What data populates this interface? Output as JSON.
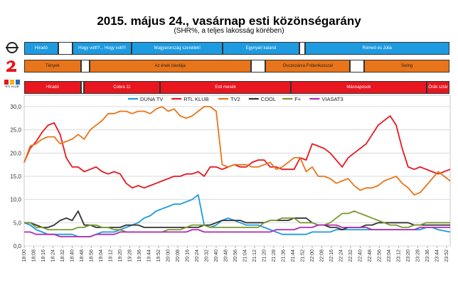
{
  "title": "2015. május 24., vasárnap esti közönségarány",
  "subtitle": "(SHR%, a teljes lakosság körében)",
  "logos": [
    {
      "channel": "DUNA TV",
      "icon": "duna-logo-icon"
    },
    {
      "channel": "TV2",
      "icon": "tv2-logo-icon"
    },
    {
      "channel": "RTL KLUB",
      "icon": "rtl-klub-logo-icon",
      "text": "RTL KLUB"
    }
  ],
  "schedules": [
    {
      "channel": "DUNA TV",
      "color": "#1e9be0",
      "blocks": [
        {
          "label": "Híradó",
          "start": 0,
          "end": 12,
          "filled": true
        },
        {
          "label": "",
          "start": 12,
          "end": 17,
          "filled": false
        },
        {
          "label": "Hogy volt!?... Hogy volt!!!",
          "start": 17,
          "end": 38,
          "filled": true
        },
        {
          "label": "Magyarország szeretlek!",
          "start": 38,
          "end": 70,
          "filled": true
        },
        {
          "label": "Egynyári kaland",
          "start": 70,
          "end": 97,
          "filled": true
        },
        {
          "label": "",
          "start": 97,
          "end": 99,
          "filled": false
        },
        {
          "label": "Rómeó és Júlia",
          "start": 99,
          "end": 150,
          "filled": true
        }
      ]
    },
    {
      "channel": "TV2",
      "color": "#e8751a",
      "blocks": [
        {
          "label": "Tények",
          "start": 0,
          "end": 20,
          "filled": true
        },
        {
          "label": "",
          "start": 20,
          "end": 23,
          "filled": false
        },
        {
          "label": "Az ének iskolája",
          "start": 23,
          "end": 80,
          "filled": true
        },
        {
          "label": "",
          "start": 80,
          "end": 85,
          "filled": false
        },
        {
          "label": "Összezárva Friderikusszal",
          "start": 85,
          "end": 115,
          "filled": true
        },
        {
          "label": "",
          "start": 115,
          "end": 120,
          "filled": false
        },
        {
          "label": "Swing",
          "start": 120,
          "end": 150,
          "filled": true
        }
      ]
    },
    {
      "channel": "RTL KLUB",
      "color": "#e8161f",
      "blocks": [
        {
          "label": "Híradó",
          "start": 0,
          "end": 20,
          "filled": true
        },
        {
          "label": "",
          "start": 20,
          "end": 21,
          "filled": false
        },
        {
          "label": "Cobra 11",
          "start": 21,
          "end": 48,
          "filled": true
        },
        {
          "label": "Esti mesék",
          "start": 48,
          "end": 94,
          "filled": true
        },
        {
          "label": "Másnaposok",
          "start": 94,
          "end": 142,
          "filled": true
        },
        {
          "label": "Órák sztár",
          "start": 142,
          "end": 150,
          "filled": true
        }
      ]
    }
  ],
  "chart_data": {
    "type": "line",
    "title": "",
    "xlabel": "",
    "ylabel": "",
    "ylim": [
      0,
      30
    ],
    "yticks": [
      "0,0",
      "5,0",
      "10,0",
      "15,0",
      "20,0",
      "25,0",
      "30,0"
    ],
    "xticks": [
      "18:00",
      "18:08",
      "18:16",
      "18:24",
      "18:32",
      "18:40",
      "18:48",
      "18:56",
      "19:04",
      "19:12",
      "19:20",
      "19:28",
      "19:36",
      "19:44",
      "19:52",
      "20:00",
      "20:08",
      "20:16",
      "20:24",
      "20:32",
      "20:40",
      "20:48",
      "20:56",
      "21:04",
      "21:12",
      "21:20",
      "21:28",
      "21:36",
      "21:44",
      "21:52",
      "22:00",
      "22:08",
      "22:16",
      "22:24",
      "22:32",
      "22:40",
      "22:48",
      "22:56",
      "23:04",
      "23:12",
      "23:20",
      "23:28",
      "23:36",
      "23:44",
      "23:52"
    ],
    "x_minutes": [
      0,
      5,
      10,
      15,
      20,
      25,
      30,
      35,
      40,
      45,
      50,
      55,
      60,
      65,
      70,
      75,
      80,
      85,
      90,
      95,
      100,
      105,
      110,
      115,
      120,
      125,
      130,
      135,
      140,
      145,
      150,
      155,
      160,
      165,
      170,
      175,
      180,
      185,
      190,
      195,
      200,
      205,
      210,
      215,
      220,
      225,
      230,
      235,
      240,
      245,
      250,
      255,
      260,
      265,
      270,
      275,
      280,
      285,
      290,
      295,
      300,
      305,
      310,
      315,
      320,
      325,
      330,
      335,
      340,
      345,
      355
    ],
    "legend_position": "top",
    "grid": true,
    "series": [
      {
        "name": "DUNA TV",
        "color": "#1e9be0",
        "values": [
          5,
          4.5,
          3.5,
          3,
          2.5,
          2.5,
          2.5,
          2.5,
          2.5,
          2,
          2,
          2,
          2.5,
          3,
          3,
          3,
          3.5,
          4,
          4.5,
          5,
          6,
          6.5,
          7.5,
          8,
          8.5,
          9,
          9,
          9.5,
          10,
          11,
          4.5,
          4,
          4.5,
          5.5,
          6,
          5.5,
          5,
          4.5,
          4.5,
          4.5,
          4,
          3.5,
          3,
          2.5,
          2.5,
          2.5,
          2.5,
          2.5,
          3,
          3,
          3,
          3,
          3.5,
          3.5,
          3.5,
          3.5,
          3.5,
          3.5,
          3.5,
          3.5,
          3.5,
          3.5,
          3.5,
          3.5,
          3.5,
          3.5,
          3.5,
          4,
          4,
          3.5,
          3
        ]
      },
      {
        "name": "RTL KLUB",
        "color": "#e8161f",
        "values": [
          18,
          21,
          22.5,
          24.5,
          26,
          26.5,
          24,
          19,
          17,
          17,
          16,
          16.5,
          17,
          16,
          15.5,
          16,
          15.5,
          13.5,
          12.5,
          13,
          12.5,
          13,
          13.5,
          14,
          14.5,
          15,
          15,
          15.5,
          15.5,
          16,
          15,
          17,
          17,
          16.5,
          17,
          17.5,
          17,
          17,
          18,
          18.5,
          18.5,
          17,
          17,
          16.5,
          16.5,
          16.5,
          19,
          18.5,
          22,
          21.5,
          21,
          20,
          18.5,
          17,
          19,
          20,
          21,
          22,
          24,
          26,
          27,
          28,
          26,
          21,
          17,
          16.5,
          17,
          16.5,
          16,
          15.5,
          16.5
        ]
      },
      {
        "name": "TV2",
        "color": "#e8751a",
        "values": [
          18,
          21.5,
          22,
          23,
          23.5,
          23.5,
          22,
          22.5,
          23,
          24,
          23,
          25,
          26,
          27,
          28.5,
          28.5,
          29,
          29,
          28.5,
          29,
          29,
          28.5,
          29.5,
          30,
          29,
          29.5,
          28,
          27.5,
          28,
          29,
          30,
          30,
          29,
          17.5,
          17,
          17.5,
          17.5,
          17.5,
          17,
          17,
          17.5,
          18,
          16.5,
          17,
          18,
          19,
          19,
          16,
          17,
          15,
          15,
          14.5,
          13.5,
          14,
          14.5,
          13,
          12,
          12.5,
          12.5,
          13,
          14,
          14.5,
          15,
          13.5,
          12.5,
          11,
          11.5,
          13,
          14.5,
          16,
          14
        ]
      },
      {
        "name": "COOL",
        "color": "#333333",
        "values": [
          5,
          5,
          4.5,
          4,
          4,
          4.5,
          5.5,
          6,
          5.5,
          7.5,
          4.5,
          4.5,
          4,
          4,
          4,
          4,
          4,
          4.5,
          4.5,
          4.5,
          4,
          4,
          4,
          4,
          4,
          4,
          4,
          4,
          4,
          4,
          4.5,
          4.5,
          5,
          5.5,
          5.5,
          5.5,
          5.5,
          5,
          5,
          5,
          5,
          5.5,
          5.5,
          5.5,
          5.5,
          6,
          6,
          6,
          5,
          4.5,
          4.5,
          4,
          4,
          3.5,
          4,
          4,
          4,
          4.5,
          4.5,
          5,
          5,
          5,
          5,
          5,
          5,
          4.5,
          4.5,
          4.5,
          4.5,
          4.5,
          4.5
        ]
      },
      {
        "name": "F+",
        "color": "#7a9a32",
        "values": [
          5,
          5,
          4,
          4,
          3.5,
          3.5,
          3.5,
          3.5,
          3.5,
          4,
          4,
          4.5,
          4.5,
          4,
          4,
          3.5,
          3.5,
          3,
          3,
          3,
          3,
          3,
          3,
          3,
          3.5,
          3.5,
          3.5,
          4,
          4.5,
          4.5,
          4.5,
          4,
          4,
          4,
          4,
          4,
          4,
          4,
          4,
          4,
          5,
          5.5,
          5.5,
          6,
          6,
          6,
          5,
          5,
          5,
          4.5,
          4.5,
          5,
          6,
          7,
          7,
          7.5,
          7,
          6.5,
          6,
          5.5,
          5,
          4.5,
          4.5,
          4,
          4,
          4.5,
          4.5,
          5,
          5,
          5,
          5
        ]
      },
      {
        "name": "VIASAT3",
        "color": "#b02cb0",
        "values": [
          3,
          3,
          2.5,
          2.5,
          2.5,
          2.5,
          2,
          2,
          2,
          2,
          2,
          2,
          2.5,
          2.5,
          2.5,
          2.5,
          3,
          3,
          3,
          3,
          3,
          3,
          3,
          3,
          3,
          3,
          3,
          3,
          3.5,
          3.5,
          3,
          3,
          3,
          3,
          3,
          3,
          3,
          3,
          3,
          3,
          3,
          3,
          3.5,
          3.5,
          3.5,
          3.5,
          4,
          4,
          4,
          4.5,
          4.5,
          4.5,
          4.5,
          4,
          4,
          4,
          4,
          4,
          3.5,
          3.5,
          3.5,
          3.5,
          3.5,
          3.5,
          3.5,
          3.5,
          4,
          4,
          4,
          4,
          4
        ]
      }
    ]
  }
}
